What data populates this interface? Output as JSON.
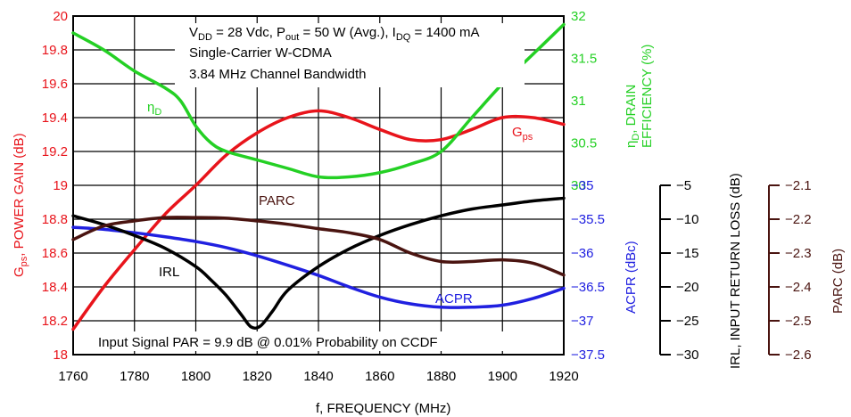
{
  "chart_data": {
    "type": "line",
    "xlabel": "f, FREQUENCY (MHz)",
    "x_ticks": [
      1760,
      1780,
      1800,
      1820,
      1840,
      1860,
      1880,
      1900,
      1920
    ],
    "xlim": [
      1760,
      1920
    ],
    "annotation_box": {
      "line1_prefix": "V",
      "line1_sub1": "DD",
      "line1_mid1": " = 28 Vdc, P",
      "line1_sub2": "out",
      "line1_mid2": " = 50 W (Avg.), I",
      "line1_sub3": "DQ",
      "line1_end": " = 1400 mA",
      "line2": "Single-Carrier W-CDMA",
      "line3": "3.84 MHz Channel Bandwidth"
    },
    "bottom_note": "Input Signal PAR = 9.9 dB @ 0.01% Probability on CCDF",
    "axes": {
      "gain": {
        "label_prefix": "G",
        "label_sub": "ps",
        "label_rest": ", POWER GAIN (dB)",
        "ylim": [
          18,
          20
        ],
        "ticks": [
          "18",
          "18.2",
          "18.4",
          "18.6",
          "18.8",
          "19",
          "19.2",
          "19.4",
          "19.6",
          "19.8",
          "20"
        ],
        "color": "#e8141b"
      },
      "eff": {
        "label_prefix": "η",
        "label_sub": "D",
        "label_rest": ", DRAIN",
        "label_line2": "EFFICIENCY (%)",
        "ylim": [
          28,
          32
        ],
        "ticks": [
          "30",
          "30.5",
          "31",
          "31.5",
          "32"
        ],
        "color": "#24d024"
      },
      "acpr": {
        "label": "ACPR (dBc)",
        "ylim": [
          -37.5,
          -35
        ],
        "ticks": [
          "-35",
          "-35.5",
          "-36",
          "-36.5",
          "-37",
          "-37.5"
        ],
        "color": "#2020e0"
      },
      "irl": {
        "label": "IRL, INPUT RETURN LOSS (dB)",
        "ylim": [
          -30,
          -5
        ],
        "ticks": [
          "-5",
          "-10",
          "-15",
          "-20",
          "-25",
          "-30"
        ],
        "color": "#000000"
      },
      "parc": {
        "label": "PARC (dB)",
        "ylim": [
          -2.6,
          -2.1
        ],
        "ticks": [
          "-2.1",
          "-2.2",
          "-2.3",
          "-2.4",
          "-2.5",
          "-2.6"
        ],
        "color": "#4a1410"
      }
    },
    "series": [
      {
        "name": "Gps",
        "label_prefix": "G",
        "label_sub": "ps",
        "axis": "gain",
        "color": "#e8141b",
        "x": [
          1760,
          1770,
          1780,
          1790,
          1800,
          1810,
          1820,
          1830,
          1840,
          1850,
          1860,
          1870,
          1880,
          1890,
          1900,
          1910,
          1920
        ],
        "y": [
          18.15,
          18.4,
          18.62,
          18.83,
          19.0,
          19.18,
          19.31,
          19.4,
          19.44,
          19.4,
          19.33,
          19.27,
          19.27,
          19.33,
          19.4,
          19.4,
          19.36
        ]
      },
      {
        "name": "ηD",
        "label_prefix": "η",
        "label_sub": "D",
        "axis": "eff",
        "color": "#24d024",
        "x": [
          1760,
          1770,
          1780,
          1790,
          1795,
          1800,
          1805,
          1810,
          1820,
          1830,
          1840,
          1850,
          1860,
          1870,
          1880,
          1890,
          1900,
          1910,
          1920
        ],
        "y": [
          31.8,
          31.6,
          31.35,
          31.15,
          31.0,
          30.7,
          30.5,
          30.4,
          30.3,
          30.2,
          30.1,
          30.1,
          30.15,
          30.25,
          30.4,
          30.8,
          31.2,
          31.55,
          31.9
        ]
      },
      {
        "name": "ACPR",
        "axis": "acpr",
        "color": "#2020e0",
        "x": [
          1760,
          1770,
          1780,
          1790,
          1800,
          1810,
          1820,
          1830,
          1840,
          1850,
          1860,
          1870,
          1880,
          1890,
          1900,
          1910,
          1920
        ],
        "y": [
          -35.62,
          -35.65,
          -35.7,
          -35.76,
          -35.83,
          -35.92,
          -36.04,
          -36.18,
          -36.33,
          -36.5,
          -36.65,
          -36.75,
          -36.8,
          -36.8,
          -36.77,
          -36.67,
          -36.52
        ]
      },
      {
        "name": "IRL",
        "axis": "irl",
        "color": "#000000",
        "x": [
          1760,
          1770,
          1780,
          1790,
          1800,
          1805,
          1810,
          1815,
          1818,
          1821,
          1825,
          1830,
          1840,
          1850,
          1860,
          1870,
          1880,
          1890,
          1900,
          1910,
          1920
        ],
        "y": [
          -9.5,
          -10.8,
          -12.4,
          -14.3,
          -17.0,
          -19.0,
          -21.3,
          -24.2,
          -25.9,
          -25.8,
          -23.6,
          -20.5,
          -17.0,
          -14.4,
          -12.4,
          -10.8,
          -9.5,
          -8.5,
          -7.9,
          -7.3,
          -6.9
        ]
      },
      {
        "name": "PARC",
        "axis": "parc",
        "color": "#4a1410",
        "x": [
          1760,
          1770,
          1780,
          1790,
          1800,
          1810,
          1820,
          1830,
          1840,
          1850,
          1860,
          1870,
          1880,
          1890,
          1900,
          1910,
          1920
        ],
        "y": [
          -2.26,
          -2.22,
          -2.205,
          -2.195,
          -2.195,
          -2.197,
          -2.205,
          -2.215,
          -2.228,
          -2.24,
          -2.26,
          -2.3,
          -2.325,
          -2.325,
          -2.32,
          -2.33,
          -2.365
        ]
      }
    ]
  }
}
